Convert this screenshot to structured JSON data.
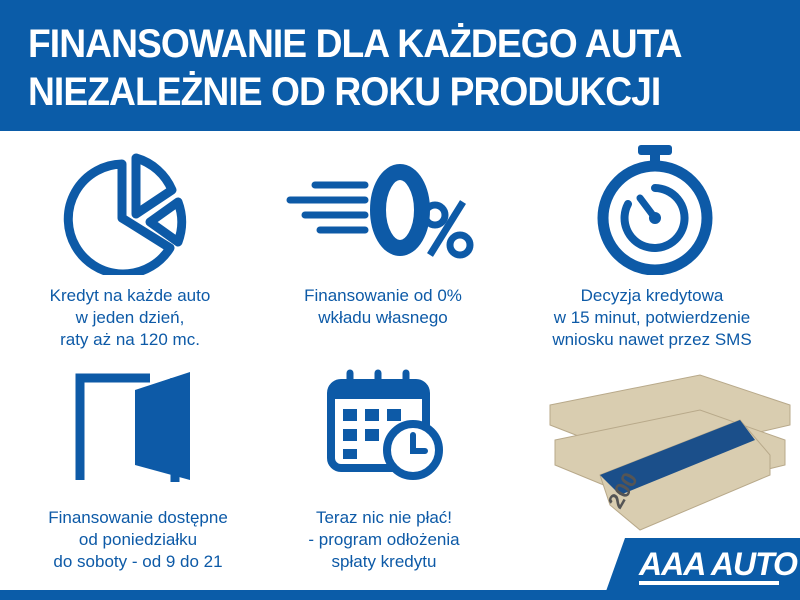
{
  "header": {
    "line1": "FINANSOWANIE DLA KAŻDEGO AUTA",
    "line2": "NIEZALEŻNIE OD ROKU PRODUKCJI"
  },
  "features": [
    {
      "icon": "pie-chart-icon",
      "lines": [
        "Kredyt na każde auto",
        "w jeden dzień,",
        "raty aż na 120 mc."
      ]
    },
    {
      "icon": "zero-percent-icon",
      "lines": [
        "Finansowanie od 0%",
        "wkładu własnego"
      ]
    },
    {
      "icon": "stopwatch-icon",
      "lines": [
        "Decyzja kredytowa",
        "w 15 minut, potwierdzenie",
        "wniosku nawet przez SMS"
      ]
    },
    {
      "icon": "open-door-icon",
      "lines": [
        "Finansowanie dostępne",
        "od poniedziałku",
        "do soboty - od 9 do 21"
      ]
    },
    {
      "icon": "calendar-clock-icon",
      "lines": [
        "Teraz nic nie płać!",
        "- program odłożenia",
        "spłaty kredytu"
      ]
    }
  ],
  "banknote_text": "200",
  "logo": "AAA AUTO",
  "colors": {
    "brand": "#0b5ca8",
    "white": "#ffffff"
  }
}
